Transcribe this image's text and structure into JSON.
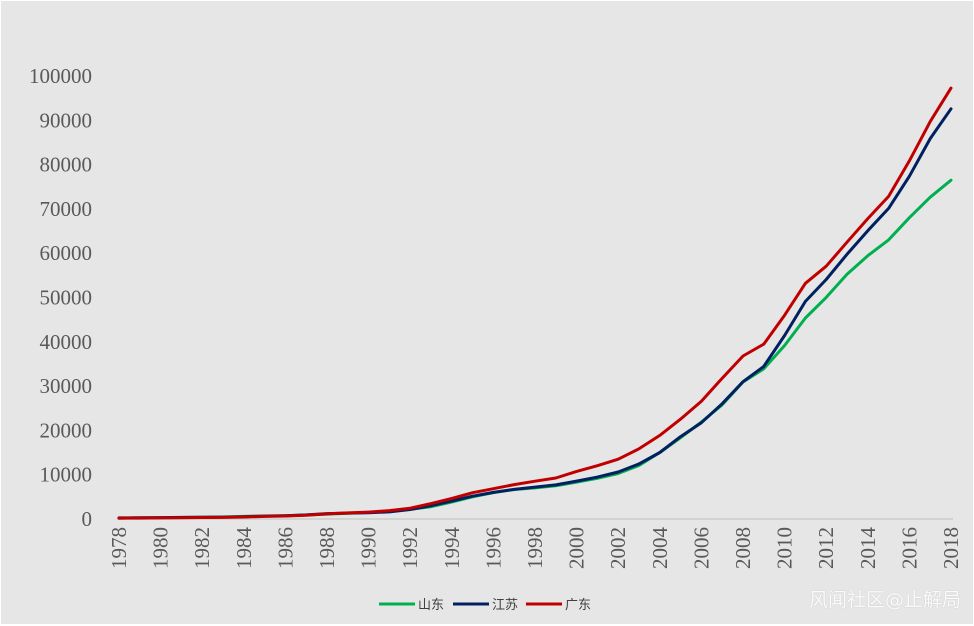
{
  "chart_data": {
    "type": "line",
    "x": [
      "1978",
      "1979",
      "1980",
      "1981",
      "1982",
      "1983",
      "1984",
      "1985",
      "1986",
      "1987",
      "1988",
      "1989",
      "1990",
      "1991",
      "1992",
      "1993",
      "1994",
      "1995",
      "1996",
      "1997",
      "1998",
      "1999",
      "2000",
      "2001",
      "2002",
      "2003",
      "2004",
      "2005",
      "2006",
      "2007",
      "2008",
      "2009",
      "2010",
      "2011",
      "2012",
      "2013",
      "2014",
      "2015",
      "2016",
      "2017",
      "2018"
    ],
    "x_tick_labels": [
      "1978",
      "1980",
      "1982",
      "1984",
      "1986",
      "1988",
      "1990",
      "1992",
      "1994",
      "1996",
      "1998",
      "2000",
      "2002",
      "2004",
      "2006",
      "2008",
      "2010",
      "2012",
      "2014",
      "2016",
      "2018"
    ],
    "ylim": [
      0,
      100000
    ],
    "y_ticks": [
      "0",
      "10000",
      "20000",
      "30000",
      "40000",
      "50000",
      "60000",
      "70000",
      "80000",
      "90000",
      "100000"
    ],
    "series": [
      {
        "name": "山东",
        "color": "#00b050",
        "values": [
          225,
          251,
          292,
          346,
          396,
          459,
          581,
          680,
          742,
          893,
          1117,
          1294,
          1511,
          1810,
          2196,
          2771,
          3844,
          5002,
          5960,
          6650,
          7021,
          7493,
          8337,
          9195,
          10275,
          12078,
          15021,
          18366,
          21900,
          25776,
          30933,
          33896,
          39170,
          45362,
          50013,
          55230,
          59427,
          63002,
          68024,
          72634,
          76470
        ]
      },
      {
        "name": "江苏",
        "color": "#002060",
        "values": [
          249,
          298,
          320,
          350,
          390,
          438,
          518,
          652,
          744,
          922,
          1208,
          1321,
          1417,
          1601,
          2136,
          2998,
          4057,
          5155,
          6004,
          6680,
          7200,
          7698,
          8554,
          9457,
          10607,
          12443,
          15004,
          18599,
          21742,
          26018,
          30982,
          34457,
          41425,
          49110,
          54058,
          59753,
          65088,
          70116,
          77388,
          85870,
          92595
        ]
      },
      {
        "name": "广东",
        "color": "#c00000",
        "values": [
          186,
          209,
          250,
          290,
          340,
          368,
          459,
          577,
          667,
          847,
          1155,
          1381,
          1559,
          1893,
          2448,
          3469,
          4619,
          5934,
          6835,
          7774,
          8531,
          9250,
          10741,
          12039,
          13502,
          15845,
          18865,
          22558,
          26588,
          31777,
          36797,
          39483,
          46013,
          53210,
          57068,
          62475,
          67810,
          72813,
          80855,
          89705,
          97278
        ]
      }
    ]
  },
  "watermark": "风闻社区@止解局"
}
